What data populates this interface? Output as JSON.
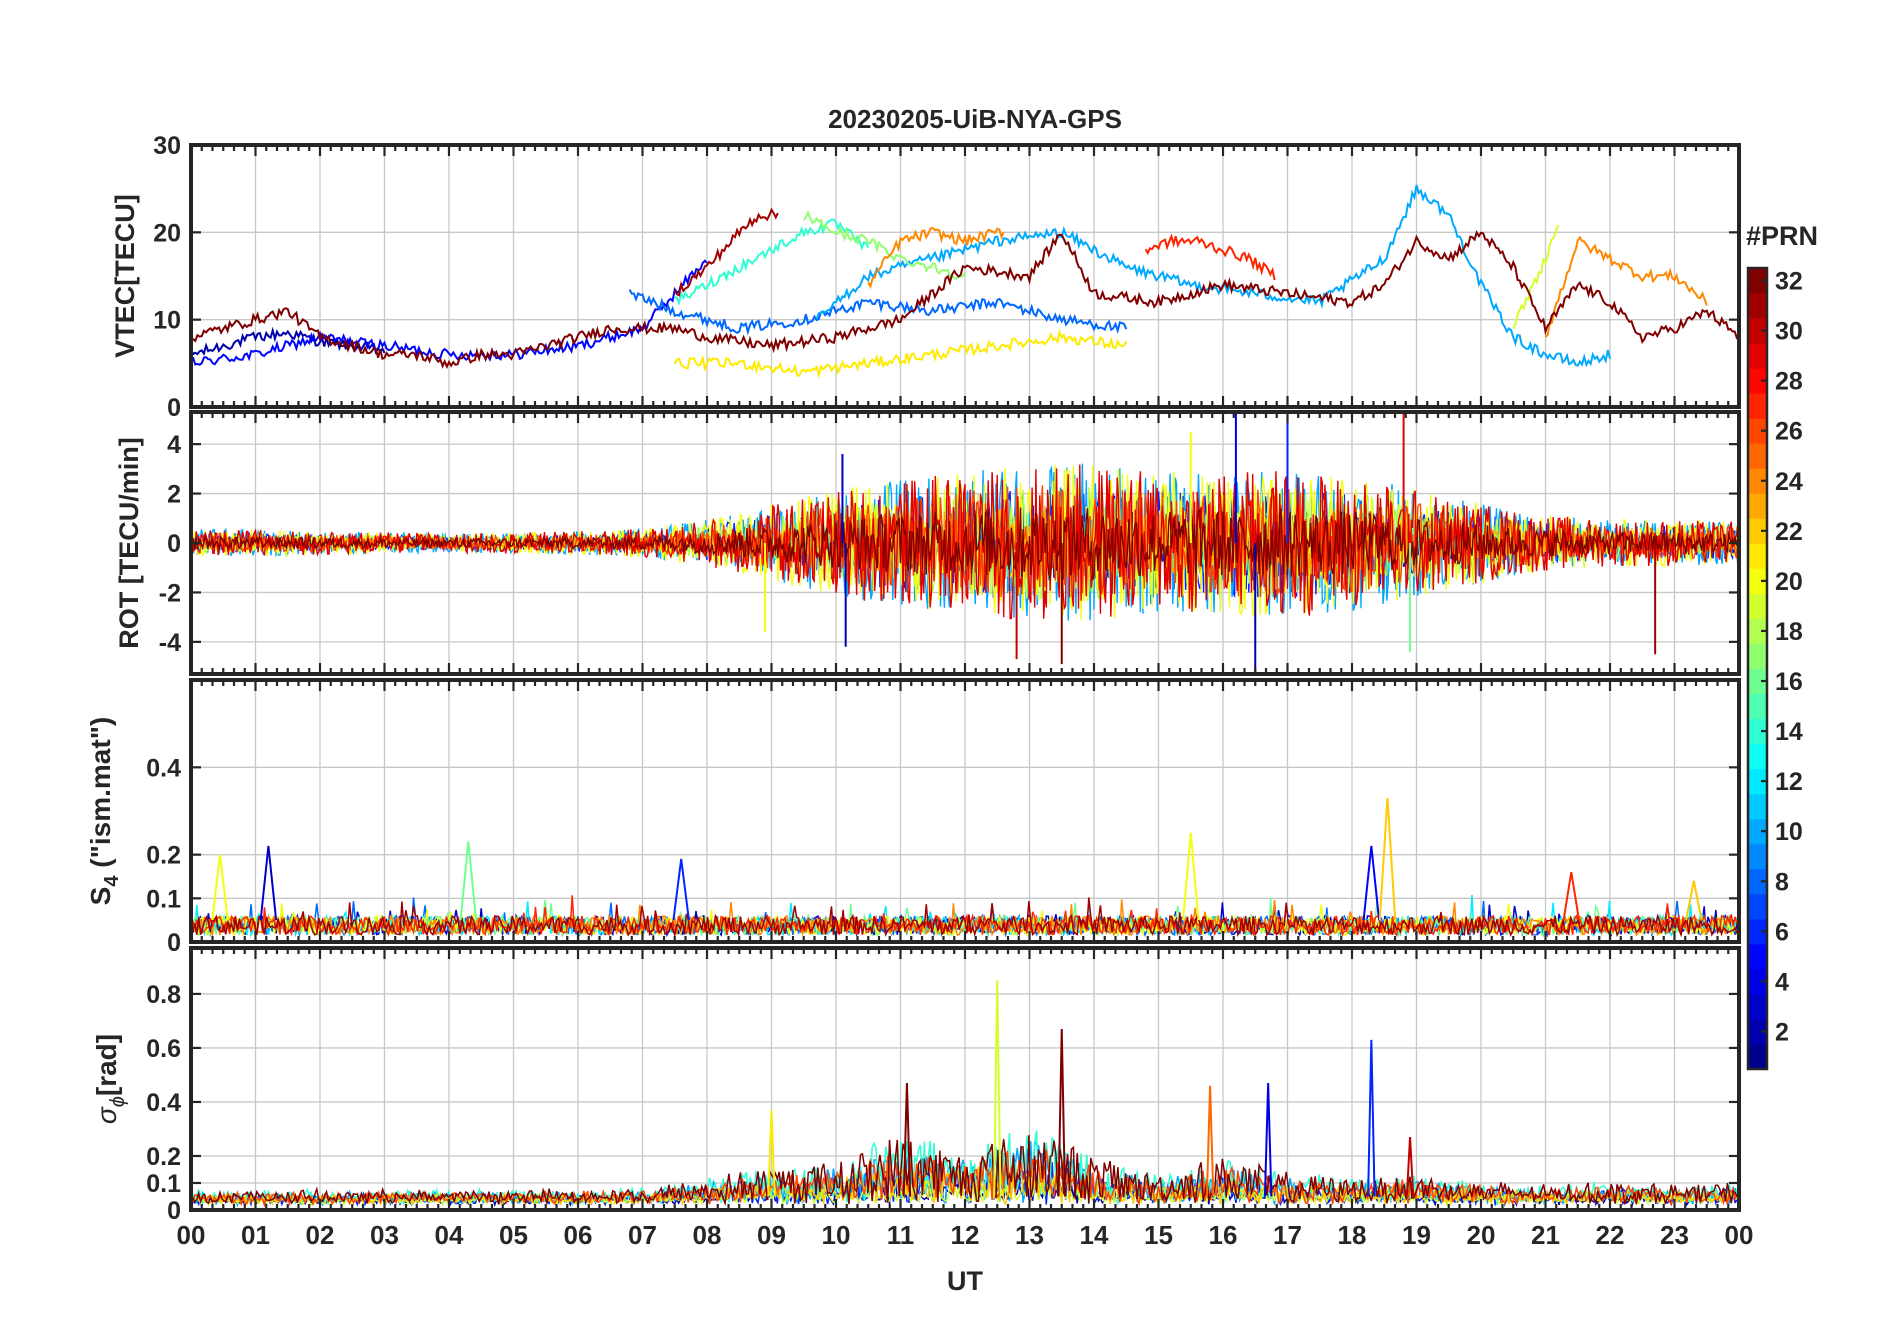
{
  "title": "20230205-UiB-NYA-GPS",
  "xlabel": "UT",
  "x_ticks": [
    "00",
    "01",
    "02",
    "03",
    "04",
    "05",
    "06",
    "07",
    "08",
    "09",
    "10",
    "11",
    "12",
    "13",
    "14",
    "15",
    "16",
    "17",
    "18",
    "19",
    "20",
    "21",
    "22",
    "23",
    "00"
  ],
  "colorbar": {
    "label": "#PRN",
    "ticks": [
      2,
      4,
      6,
      8,
      10,
      12,
      14,
      16,
      18,
      20,
      22,
      24,
      26,
      28,
      30,
      32
    ],
    "range": [
      1,
      32
    ],
    "colormap": "jet",
    "colors": [
      "#00008f",
      "#0000ff",
      "#0080ff",
      "#00ffff",
      "#80ff80",
      "#ffff00",
      "#ff8000",
      "#ff0000",
      "#800000"
    ]
  },
  "chart_data": [
    {
      "type": "line",
      "panel": "vtec",
      "ylabel": "VTEC[TECU]",
      "xlim": [
        0,
        24
      ],
      "ylim": [
        0,
        30
      ],
      "y_ticks": [
        "0",
        "10",
        "20",
        "30"
      ],
      "grid": true,
      "series": [
        {
          "prn": 2,
          "x": [
            0,
            0.5,
            1,
            1.5,
            2,
            2.5,
            3
          ],
          "y": [
            6,
            7,
            8,
            8.5,
            7.5,
            7,
            6.5
          ]
        },
        {
          "prn": 5,
          "x": [
            0,
            1,
            2,
            3,
            4,
            5,
            6,
            7,
            8
          ],
          "y": [
            5,
            6,
            8,
            7,
            6,
            6,
            7,
            9,
            17
          ]
        },
        {
          "prn": 8,
          "x": [
            6.8,
            7.5,
            8.5,
            9.5,
            10.5,
            11.5,
            12.5,
            13.5,
            14.5
          ],
          "y": [
            13,
            11,
            9,
            10,
            12,
            11,
            12,
            10,
            9
          ]
        },
        {
          "prn": 10,
          "x": [
            9.7,
            10.5,
            11.5,
            12.5,
            13.5,
            14.5,
            15.5,
            16.5,
            17.5,
            18.5,
            19,
            19.5,
            20,
            20.5,
            21,
            21.5,
            22
          ],
          "y": [
            10,
            15,
            17,
            19,
            20,
            16,
            14,
            13,
            12,
            17,
            25,
            22,
            14,
            8,
            6,
            5,
            6
          ]
        },
        {
          "prn": 14,
          "x": [
            7.5,
            8.5,
            9.5,
            10,
            10.5
          ],
          "y": [
            12,
            16,
            20,
            21,
            18
          ]
        },
        {
          "prn": 17,
          "x": [
            9.5,
            10,
            10.5,
            11,
            11.5,
            12
          ],
          "y": [
            22,
            20,
            19,
            17,
            16,
            15
          ]
        },
        {
          "prn": 19,
          "x": [
            20.5,
            21,
            21.2
          ],
          "y": [
            9,
            17,
            21
          ]
        },
        {
          "prn": 21,
          "x": [
            7.5,
            8.5,
            9.5,
            10.5,
            11.5,
            12.5,
            13.5,
            14.5
          ],
          "y": [
            5,
            5,
            4,
            5,
            6,
            7,
            8,
            7
          ]
        },
        {
          "prn": 24,
          "x": [
            10.5,
            11,
            11.5,
            12,
            12.5,
            12.6
          ],
          "y": [
            14,
            19,
            20,
            19,
            20,
            20
          ]
        },
        {
          "prn": 24,
          "x": [
            21,
            21.5,
            22,
            22.5,
            23,
            23.5
          ],
          "y": [
            8,
            19,
            17,
            15,
            15,
            12
          ]
        },
        {
          "prn": 27,
          "x": [
            14.8,
            15.2,
            15.6,
            16,
            16.4,
            16.8
          ],
          "y": [
            18,
            19,
            19,
            18,
            17,
            15
          ]
        },
        {
          "prn": 31,
          "x": [
            7.5,
            8,
            8.5,
            8.8,
            9.1
          ],
          "y": [
            13,
            16,
            20,
            22,
            22
          ]
        },
        {
          "prn": 32,
          "x": [
            0,
            0.5,
            1,
            1.5,
            2,
            2.5,
            3,
            3.5,
            4,
            4.5,
            5,
            5.5,
            6,
            6.5,
            7,
            7.5,
            8,
            9,
            10,
            11,
            12,
            13,
            13.5,
            14,
            15,
            16,
            17,
            18,
            18.5,
            19,
            19.5,
            20,
            20.5,
            21,
            21.5,
            22,
            22.5,
            23,
            23.5,
            24
          ],
          "y": [
            8,
            9,
            10,
            11,
            8,
            7,
            6,
            6,
            5,
            6,
            6,
            7,
            8,
            9,
            9,
            9,
            8,
            7,
            8,
            10,
            16,
            15,
            20,
            13,
            12,
            14,
            13,
            12,
            14,
            19,
            17,
            20,
            16,
            9,
            14,
            12,
            8,
            9,
            11,
            8
          ]
        }
      ]
    },
    {
      "type": "line",
      "panel": "rot",
      "ylabel": "ROT [TECU/min]",
      "xlim": [
        0,
        24
      ],
      "ylim": [
        -5.3,
        5.3
      ],
      "y_ticks": [
        "4",
        "2",
        "0",
        "-2",
        "-4"
      ],
      "grid": true,
      "envelope": {
        "x": [
          0,
          2,
          4,
          6,
          7,
          8,
          9,
          10,
          11,
          12,
          13,
          14,
          15,
          16,
          17,
          18,
          19,
          20,
          21,
          22,
          23,
          24
        ],
        "amplitude": [
          0.6,
          0.5,
          0.4,
          0.5,
          0.6,
          1.0,
          1.6,
          2.3,
          2.7,
          3.0,
          3.4,
          3.4,
          3.0,
          3.1,
          3.2,
          2.9,
          2.3,
          1.7,
          1.2,
          1.0,
          1.0,
          0.9
        ]
      },
      "spikes": [
        {
          "x": 8.9,
          "y": -3.6,
          "prn": 20
        },
        {
          "x": 10.1,
          "y": 3.6,
          "prn": 3
        },
        {
          "x": 10.15,
          "y": -4.2,
          "prn": 2
        },
        {
          "x": 12.8,
          "y": -4.7,
          "prn": 30
        },
        {
          "x": 13.5,
          "y": -4.9,
          "prn": 32
        },
        {
          "x": 15.5,
          "y": 4.5,
          "prn": 20
        },
        {
          "x": 16.2,
          "y": 5.3,
          "prn": 4
        },
        {
          "x": 16.5,
          "y": -5.3,
          "prn": 2
        },
        {
          "x": 17.0,
          "y": 5.3,
          "prn": 6
        },
        {
          "x": 18.8,
          "y": 5.3,
          "prn": 29
        },
        {
          "x": 18.9,
          "y": -4.4,
          "prn": 16
        },
        {
          "x": 22.7,
          "y": -4.5,
          "prn": 31
        }
      ]
    },
    {
      "type": "line",
      "panel": "s4",
      "ylabel": "S4 (\"ism.mat\")",
      "xlim": [
        0,
        24
      ],
      "ylim": [
        0,
        0.6
      ],
      "y_ticks": [
        "0",
        "0.1",
        "0.2",
        "0.4"
      ],
      "grid": true,
      "baseline": 0.04,
      "peaks": [
        {
          "x": 0.45,
          "y": 0.2,
          "prn": 20
        },
        {
          "x": 1.2,
          "y": 0.22,
          "prn": 3
        },
        {
          "x": 4.3,
          "y": 0.23,
          "prn": 16
        },
        {
          "x": 7.6,
          "y": 0.19,
          "prn": 6
        },
        {
          "x": 15.5,
          "y": 0.25,
          "prn": 20
        },
        {
          "x": 18.3,
          "y": 0.22,
          "prn": 5
        },
        {
          "x": 18.55,
          "y": 0.33,
          "prn": 22
        },
        {
          "x": 21.4,
          "y": 0.16,
          "prn": 27
        },
        {
          "x": 23.3,
          "y": 0.14,
          "prn": 22
        }
      ]
    },
    {
      "type": "line",
      "panel": "sigma_phi",
      "ylabel": "σφ[rad]",
      "xlim": [
        0,
        24
      ],
      "ylim": [
        0,
        0.97
      ],
      "y_ticks": [
        "0",
        "0.1",
        "0.2",
        "0.4",
        "0.6",
        "0.8"
      ],
      "grid": true,
      "baseline": 0.03,
      "envelope": {
        "x": [
          0,
          7,
          8,
          9,
          10,
          11,
          12,
          13,
          14,
          15,
          16,
          17,
          18,
          19,
          20,
          21,
          22,
          23,
          24
        ],
        "amplitude": [
          0.04,
          0.05,
          0.1,
          0.15,
          0.18,
          0.3,
          0.22,
          0.35,
          0.2,
          0.12,
          0.2,
          0.12,
          0.1,
          0.12,
          0.08,
          0.07,
          0.08,
          0.07,
          0.08
        ]
      },
      "peaks": [
        {
          "x": 9.0,
          "y": 0.37,
          "prn": 21
        },
        {
          "x": 11.1,
          "y": 0.47,
          "prn": 32
        },
        {
          "x": 12.5,
          "y": 0.85,
          "prn": 19
        },
        {
          "x": 13.5,
          "y": 0.67,
          "prn": 32
        },
        {
          "x": 15.8,
          "y": 0.46,
          "prn": 25
        },
        {
          "x": 16.7,
          "y": 0.47,
          "prn": 4
        },
        {
          "x": 18.3,
          "y": 0.63,
          "prn": 6
        },
        {
          "x": 18.9,
          "y": 0.27,
          "prn": 30
        }
      ]
    }
  ]
}
